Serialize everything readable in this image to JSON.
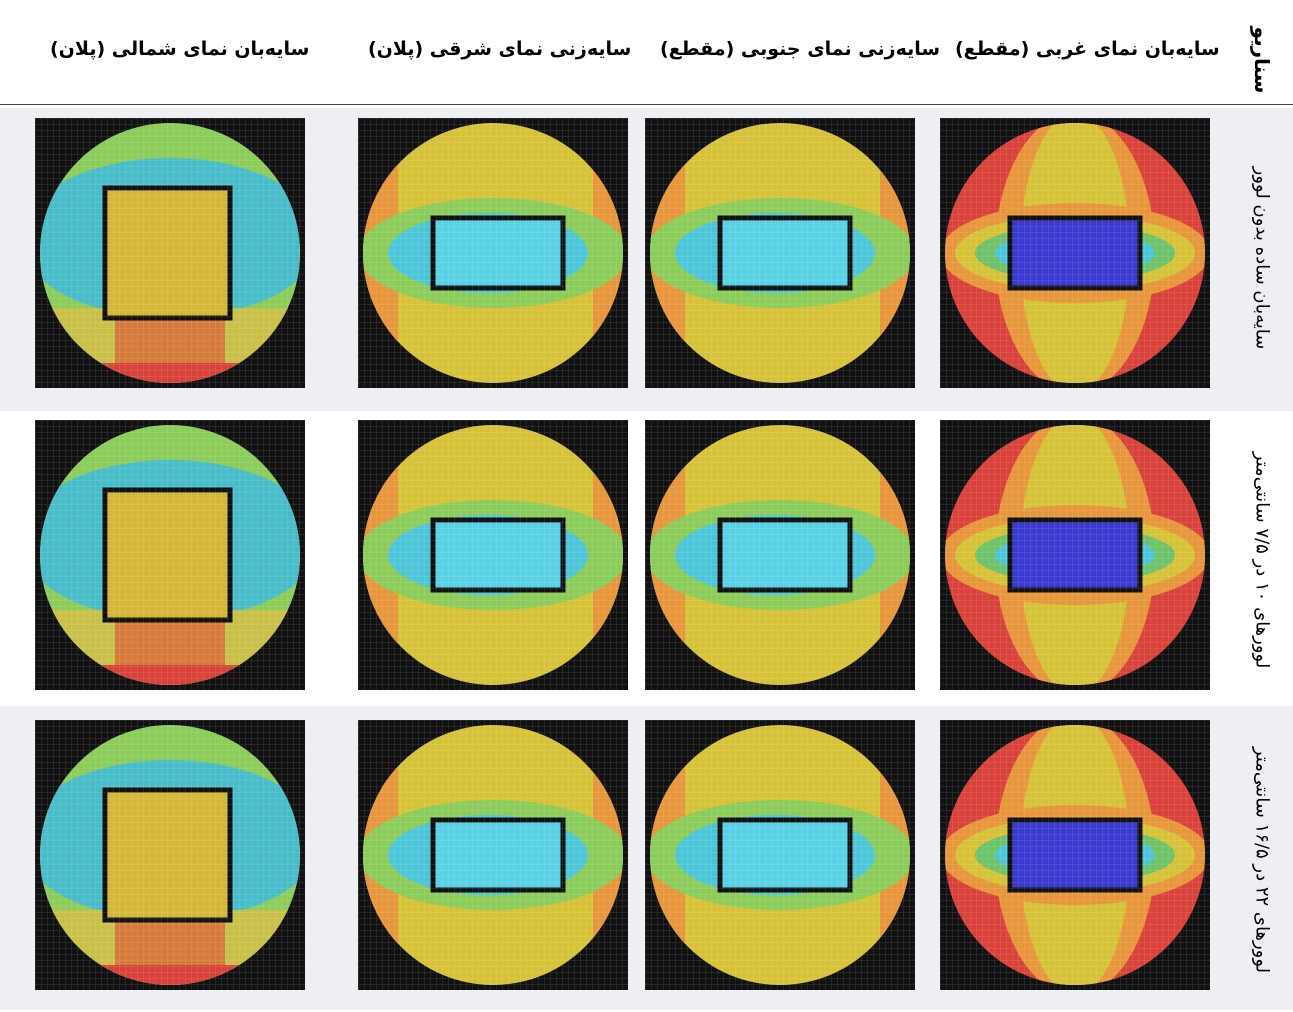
{
  "header": {
    "scenario": "سناریو",
    "columns": [
      "سایه‌بان نمای غربی (مقطع)",
      "سایه‌زنی نمای جنوبی (مقطع)",
      "سایه‌زنی نمای شرقی (پلان)",
      "سایه‌بان نمای شمالی (پلان)"
    ]
  },
  "rows": [
    {
      "label": "سایه‌بان ساده بدون لوور"
    },
    {
      "label": "لوورهای ۱۰ در ۷/۵ سانتی‌متر"
    },
    {
      "label": "لوورهای ۲۲ در ۱۶/۵ سانتی‌متر"
    }
  ]
}
